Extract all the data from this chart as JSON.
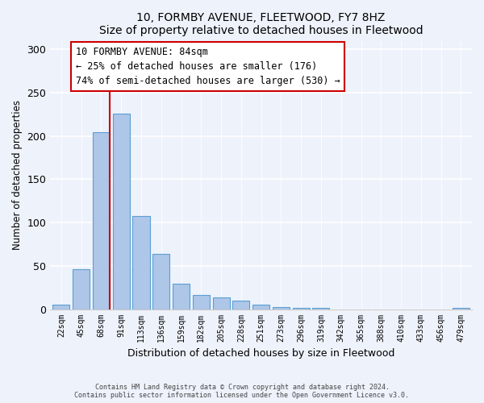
{
  "title": "10, FORMBY AVENUE, FLEETWOOD, FY7 8HZ",
  "subtitle": "Size of property relative to detached houses in Fleetwood",
  "xlabel": "Distribution of detached houses by size in Fleetwood",
  "ylabel": "Number of detached properties",
  "bar_labels": [
    "22sqm",
    "45sqm",
    "68sqm",
    "91sqm",
    "113sqm",
    "136sqm",
    "159sqm",
    "182sqm",
    "205sqm",
    "228sqm",
    "251sqm",
    "273sqm",
    "296sqm",
    "319sqm",
    "342sqm",
    "365sqm",
    "388sqm",
    "410sqm",
    "433sqm",
    "456sqm",
    "479sqm"
  ],
  "bar_values": [
    5,
    46,
    204,
    226,
    108,
    64,
    29,
    16,
    14,
    10,
    5,
    2,
    1,
    1,
    0,
    0,
    0,
    0,
    0,
    0,
    1
  ],
  "bar_color": "#aec6e8",
  "bar_edge_color": "#5a9fd4",
  "ylim": [
    0,
    310
  ],
  "yticks": [
    0,
    50,
    100,
    150,
    200,
    250,
    300
  ],
  "property_line_bar_index": 2,
  "property_line_color": "#cc0000",
  "annotation_title": "10 FORMBY AVENUE: 84sqm",
  "annotation_line1": "← 25% of detached houses are smaller (176)",
  "annotation_line2": "74% of semi-detached houses are larger (530) →",
  "annotation_box_color": "#ffffff",
  "annotation_box_edge": "#cc0000",
  "footnote1": "Contains HM Land Registry data © Crown copyright and database right 2024.",
  "footnote2": "Contains public sector information licensed under the Open Government Licence v3.0.",
  "bg_color": "#eef2fb"
}
